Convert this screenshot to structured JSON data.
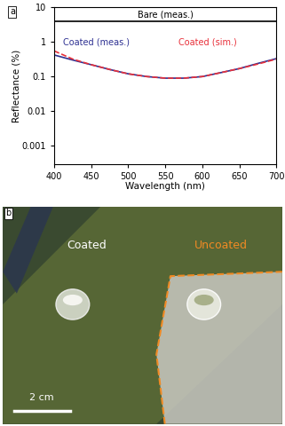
{
  "chart_data": {
    "type": "line",
    "title": "a",
    "x_label": "Wavelength (nm)",
    "y_label": "Reflectance (%)",
    "x": [
      400,
      425,
      450,
      475,
      500,
      525,
      550,
      575,
      600,
      625,
      650,
      675,
      700
    ],
    "series": [
      {
        "name": "Bare (meas.)",
        "color": "#000000",
        "line_style": "solid",
        "values": [
          4.0,
          4.0,
          4.0,
          4.0,
          4.0,
          4.0,
          4.0,
          4.0,
          4.0,
          4.0,
          4.0,
          4.0,
          4.0
        ]
      },
      {
        "name": "Coated (meas.)",
        "color": "#2e3192",
        "line_style": "solid",
        "values": [
          0.42,
          0.3,
          0.22,
          0.16,
          0.12,
          0.1,
          0.09,
          0.09,
          0.1,
          0.13,
          0.17,
          0.24,
          0.33
        ]
      },
      {
        "name": "Coated (sim.)",
        "color": "#e8303a",
        "line_style": "dashed",
        "values": [
          0.55,
          0.32,
          0.22,
          0.16,
          0.12,
          0.1,
          0.09,
          0.09,
          0.1,
          0.13,
          0.17,
          0.23,
          0.32
        ]
      }
    ],
    "xlim": [
      400,
      700
    ],
    "xticks": [
      400,
      450,
      500,
      550,
      600,
      650,
      700
    ],
    "ylim": [
      0.0003,
      10
    ],
    "yticks": [
      0.001,
      0.01,
      0.1,
      1,
      10
    ],
    "log": "y",
    "grid": false
  },
  "photo": {
    "label": "b",
    "left_text": "Coated",
    "right_text": "Uncoated",
    "scale_bar": "2 cm"
  }
}
